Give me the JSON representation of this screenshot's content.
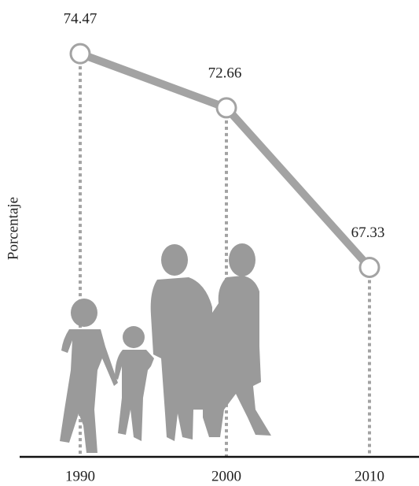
{
  "chart_data": {
    "type": "line",
    "y_label": "Porcentaje",
    "categories": [
      "1990",
      "2000",
      "2010"
    ],
    "values": [
      74.47,
      72.66,
      67.33
    ],
    "color": "#a3a3a3",
    "ylim": [
      61,
      76
    ]
  }
}
